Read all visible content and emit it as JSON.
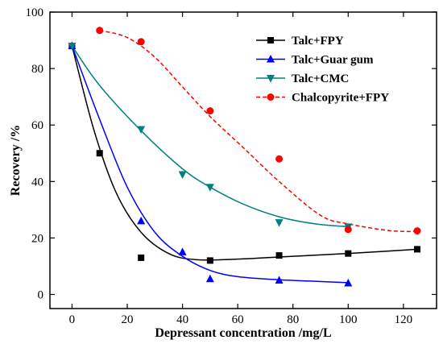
{
  "chart_data": {
    "type": "scatter",
    "xlabel": "Depressant concentration /mg/L",
    "ylabel": "Recovery /%",
    "xlim": [
      -8,
      132
    ],
    "ylim": [
      -5,
      100
    ],
    "xticks": [
      0,
      20,
      40,
      60,
      80,
      100,
      120
    ],
    "yticks": [
      0,
      20,
      40,
      60,
      80,
      100
    ],
    "grid": false,
    "legend_position": "top-right",
    "series": [
      {
        "name": "Talc+FPY",
        "marker": "square",
        "color": "#000000",
        "line": "solid",
        "x": [
          0,
          10,
          25,
          50,
          75,
          100,
          125
        ],
        "y": [
          88,
          50,
          13,
          12,
          13.8,
          14.5,
          16
        ],
        "fit": [
          [
            0,
            88
          ],
          [
            8,
            58
          ],
          [
            16,
            36
          ],
          [
            25,
            22
          ],
          [
            35,
            14.5
          ],
          [
            45,
            12.3
          ],
          [
            60,
            12.5
          ],
          [
            80,
            13.5
          ],
          [
            100,
            14.5
          ],
          [
            125,
            16
          ]
        ]
      },
      {
        "name": "Talc+Guar gum",
        "marker": "triangle-up",
        "color": "#0000ff",
        "line": "solid",
        "x": [
          0,
          25,
          40,
          50,
          75,
          100
        ],
        "y": [
          88,
          26,
          15,
          5.5,
          5,
          4
        ],
        "fit": [
          [
            0,
            88
          ],
          [
            10,
            62
          ],
          [
            20,
            38
          ],
          [
            30,
            22
          ],
          [
            40,
            13.5
          ],
          [
            50,
            8.5
          ],
          [
            60,
            6.3
          ],
          [
            75,
            5.2
          ],
          [
            100,
            4.2
          ]
        ]
      },
      {
        "name": "Talc+CMC",
        "marker": "triangle-down",
        "color": "#008080",
        "line": "solid",
        "x": [
          0,
          25,
          40,
          50,
          75,
          100
        ],
        "y": [
          88,
          58.5,
          42.5,
          38,
          25.5,
          24
        ],
        "fit": [
          [
            0,
            88
          ],
          [
            10,
            74
          ],
          [
            25,
            58
          ],
          [
            40,
            44.5
          ],
          [
            50,
            38
          ],
          [
            62,
            32
          ],
          [
            75,
            27.5
          ],
          [
            88,
            25
          ],
          [
            100,
            24
          ]
        ]
      },
      {
        "name": "Chalcopyrite+FPY",
        "marker": "circle",
        "color": "#ff0000",
        "line": "dashed",
        "x": [
          10,
          25,
          50,
          75,
          100,
          125
        ],
        "y": [
          93.5,
          89.5,
          65,
          48,
          23,
          22.5
        ],
        "fit": [
          [
            10,
            93.5
          ],
          [
            20,
            91
          ],
          [
            30,
            84
          ],
          [
            40,
            73.5
          ],
          [
            50,
            63
          ],
          [
            62,
            52
          ],
          [
            75,
            40
          ],
          [
            90,
            28
          ],
          [
            100,
            25
          ],
          [
            115,
            22.6
          ],
          [
            125,
            22.3
          ]
        ]
      }
    ]
  }
}
